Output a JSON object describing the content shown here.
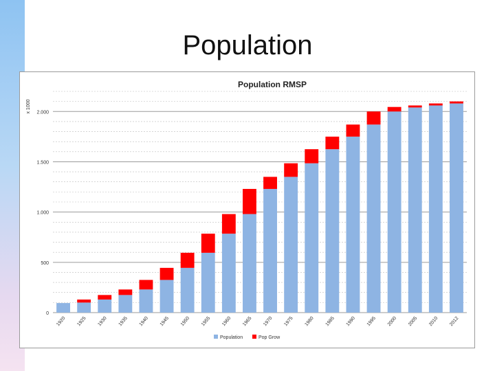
{
  "slide": {
    "title": "Population"
  },
  "colors": {
    "population": "#8eb4e3",
    "growth": "#ff0000"
  },
  "chart_data": {
    "type": "bar",
    "stacked": true,
    "title": "Population RMSP",
    "ylabel": "x 1000",
    "xlabel": "",
    "ylim": [
      0,
      2200
    ],
    "yticks": [
      0,
      500,
      1000,
      1500,
      2000
    ],
    "ytick_labels": [
      "0",
      "500",
      "1.000",
      "1.500",
      "2.000"
    ],
    "grid": true,
    "categories": [
      "1920",
      "1925",
      "1930",
      "1935",
      "1940",
      "1945",
      "1950",
      "1955",
      "1960",
      "1965",
      "1970",
      "1975",
      "1980",
      "1985",
      "1990",
      "1995",
      "2000",
      "2005",
      "2010",
      "2012"
    ],
    "series": [
      {
        "name": "Population",
        "color": "#8eb4e3",
        "values": [
          95,
          100,
          130,
          175,
          230,
          325,
          445,
          595,
          785,
          980,
          1230,
          1350,
          1485,
          1625,
          1750,
          1870,
          2000,
          2040,
          2060,
          2080
        ]
      },
      {
        "name": "Pop Grow",
        "color": "#ff0000",
        "values": [
          0,
          30,
          45,
          55,
          95,
          120,
          150,
          190,
          195,
          250,
          120,
          135,
          140,
          125,
          120,
          130,
          45,
          20,
          20,
          20
        ]
      }
    ],
    "legend": {
      "position": "bottom",
      "entries": [
        "Population",
        "Pop Grow"
      ]
    }
  }
}
